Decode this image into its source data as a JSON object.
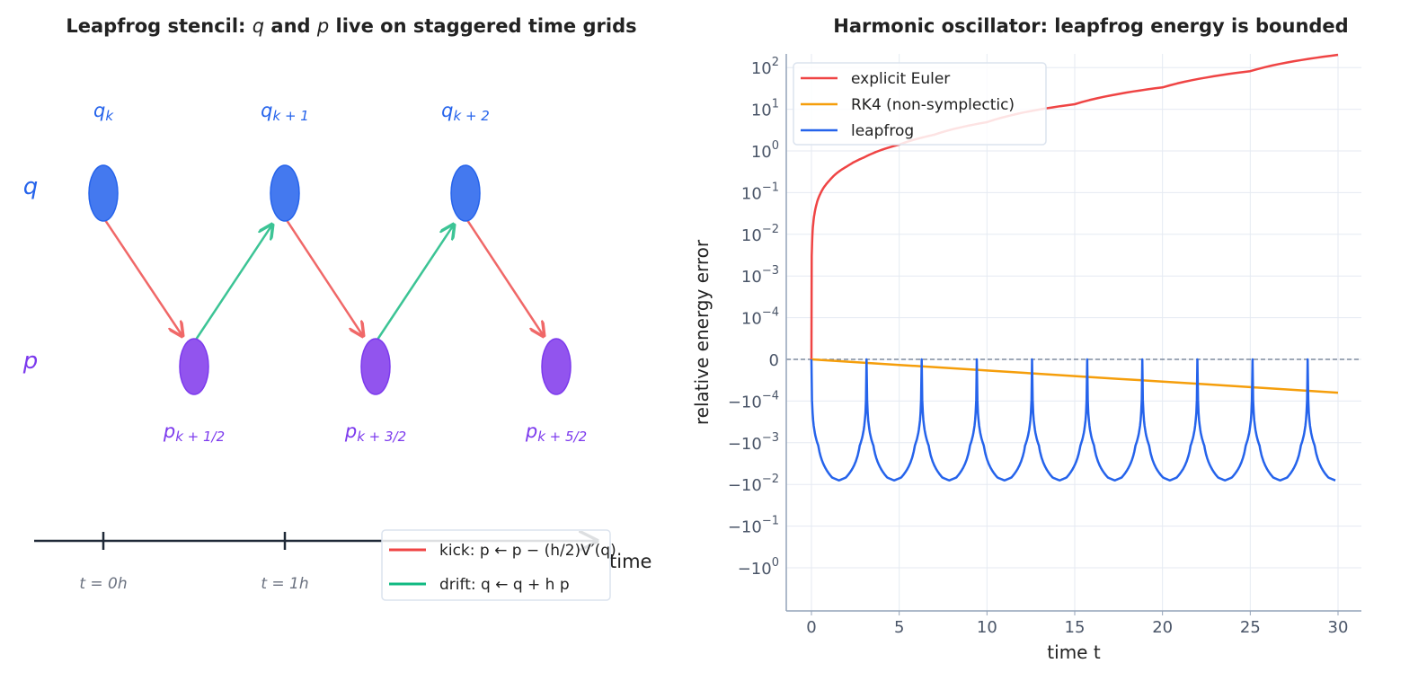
{
  "left_panel": {
    "title_pre": "Leapfrog stencil: ",
    "title_q": "q",
    "title_mid": " and ",
    "title_p": "p",
    "title_post": " live on staggered time grids",
    "row_q": "q",
    "row_p": "p",
    "q_nodes": [
      {
        "base": "q",
        "sub": "k"
      },
      {
        "base": "q",
        "sub": "k + 1"
      },
      {
        "base": "q",
        "sub": "k + 2"
      }
    ],
    "p_nodes": [
      {
        "base": "p",
        "sub": "k + 1/2"
      },
      {
        "base": "p",
        "sub": "k + 3/2"
      },
      {
        "base": "p",
        "sub": "k + 5/2"
      }
    ],
    "time_ticks": [
      "t = 0h",
      "t = 1h"
    ],
    "time_label": "time",
    "legend": {
      "kick": "kick: p ← p − (h/2)V′(q)",
      "drift": "drift: q ← q + h p"
    },
    "colors": {
      "q": "#2563eb",
      "p": "#7c3aed",
      "kick": "#ef4444",
      "drift": "#10b981",
      "axis": "#1f2937"
    }
  },
  "chart_data": {
    "type": "line",
    "title": "Harmonic oscillator: leapfrog energy is bounded",
    "xlabel": "time t",
    "ylabel": "relative energy error",
    "y_scale": "symlog",
    "y_linthresh": 0.0001,
    "xlim": [
      -1.5,
      31.5
    ],
    "ylim": [
      -1.0,
      200
    ],
    "grid": true,
    "legend_position": "top-left",
    "x_ticks": [
      0,
      5,
      10,
      15,
      20,
      25,
      30
    ],
    "y_ticks": [
      {
        "value": 100,
        "label": "10^2"
      },
      {
        "value": 10,
        "label": "10^1"
      },
      {
        "value": 1,
        "label": "10^0"
      },
      {
        "value": 0.1,
        "label": "10^−1"
      },
      {
        "value": 0.01,
        "label": "10^−2"
      },
      {
        "value": 0.001,
        "label": "10^−3"
      },
      {
        "value": 0.0001,
        "label": "10^−4"
      },
      {
        "value": 0,
        "label": "0"
      },
      {
        "value": -0.0001,
        "label": "−10^−4"
      },
      {
        "value": -0.001,
        "label": "−10^−3"
      },
      {
        "value": -0.01,
        "label": "−10^−2"
      },
      {
        "value": -0.1,
        "label": "−10^−1"
      },
      {
        "value": -1,
        "label": "−10^0"
      }
    ],
    "zero_line": true,
    "series": [
      {
        "name": "explicit Euler",
        "color": "#ef4444",
        "x": [
          0,
          0.2,
          0.5,
          1,
          2,
          3,
          5,
          7,
          10,
          15,
          20,
          25,
          30
        ],
        "y": [
          0,
          0.036,
          0.093,
          0.19,
          0.42,
          0.7,
          1.42,
          2.45,
          4.9,
          13.2,
          33.4,
          82,
          202
        ]
      },
      {
        "name": "RK4 (non-symplectic)",
        "color": "#f59e0b",
        "x": [
          0,
          30
        ],
        "y": [
          0,
          -8e-05
        ]
      },
      {
        "name": "leapfrog",
        "color": "#2563eb",
        "x": [
          0,
          0.39,
          0.79,
          1.18,
          1.57,
          1.96,
          2.36,
          2.75,
          3.14,
          3.53,
          3.93,
          4.32,
          4.71,
          5.11,
          5.5,
          5.89,
          6.28,
          6.68,
          7.07,
          7.46,
          7.85,
          8.25,
          8.64,
          9.03,
          9.42,
          9.82,
          10.21,
          10.6,
          11.0,
          11.39,
          11.78,
          12.17,
          12.57,
          12.96,
          13.35,
          13.74,
          14.14,
          14.53,
          14.92,
          15.32,
          15.71,
          16.1,
          16.49,
          16.89,
          17.28,
          17.67,
          18.06,
          18.46,
          18.85,
          19.24,
          19.63,
          20.03,
          20.42,
          20.81,
          21.21,
          21.6,
          21.99,
          22.38,
          22.78,
          23.17,
          23.56,
          23.95,
          24.35,
          24.74,
          25.13,
          25.53,
          25.92,
          26.31,
          26.7,
          27.1,
          27.49,
          27.88,
          28.27,
          28.67,
          29.06,
          29.45,
          29.85
        ],
        "y": [
          0,
          -0.00117,
          -0.004,
          -0.00683,
          -0.008,
          -0.00683,
          -0.004,
          -0.00117,
          0,
          -0.00117,
          -0.004,
          -0.00683,
          -0.008,
          -0.00683,
          -0.004,
          -0.00117,
          0,
          -0.00117,
          -0.004,
          -0.00683,
          -0.008,
          -0.00683,
          -0.004,
          -0.00117,
          0,
          -0.00117,
          -0.004,
          -0.00683,
          -0.008,
          -0.00683,
          -0.004,
          -0.00117,
          0,
          -0.00117,
          -0.004,
          -0.00683,
          -0.008,
          -0.00683,
          -0.004,
          -0.00117,
          0,
          -0.00117,
          -0.004,
          -0.00683,
          -0.008,
          -0.00683,
          -0.004,
          -0.00117,
          0,
          -0.00117,
          -0.004,
          -0.00683,
          -0.008,
          -0.00683,
          -0.004,
          -0.00117,
          0,
          -0.00117,
          -0.004,
          -0.00683,
          -0.008,
          -0.00683,
          -0.004,
          -0.00117,
          0,
          -0.00117,
          -0.004,
          -0.00683,
          -0.008,
          -0.00683,
          -0.004,
          -0.00117,
          0,
          -0.00117,
          -0.004,
          -0.00683,
          -0.008
        ]
      }
    ]
  }
}
